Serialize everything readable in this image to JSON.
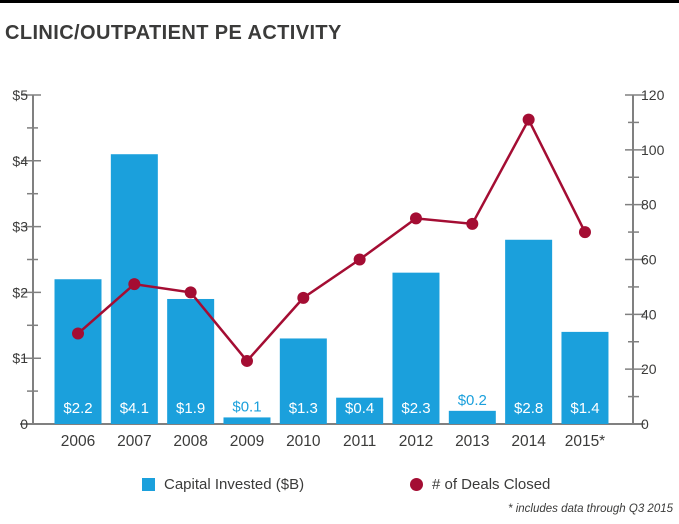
{
  "title": "CLINIC/OUTPATIENT PE ACTIVITY",
  "footnote": "* includes data through Q3 2015",
  "colors": {
    "bar": "#1BA0DC",
    "line": "#A40D33",
    "axis": "#808080",
    "text": "#3B3B3A",
    "bar_label_inside": "#FFFFFF",
    "top_rule": "#000000"
  },
  "legend": [
    {
      "label": "Capital Invested ($B)",
      "swatch": "square",
      "color": "#1BA0DC"
    },
    {
      "label": "# of Deals Closed",
      "swatch": "circle",
      "color": "#A40D33"
    }
  ],
  "chart_data": {
    "type": "bar+line combo",
    "categories": [
      "2006",
      "2007",
      "2008",
      "2009",
      "2010",
      "2011",
      "2012",
      "2013",
      "2014",
      "2015*"
    ],
    "series": [
      {
        "name": "Capital Invested ($B)",
        "type": "bar",
        "axis": "left",
        "values": [
          2.2,
          4.1,
          1.9,
          0.1,
          1.3,
          0.4,
          2.3,
          0.2,
          2.8,
          1.4
        ],
        "labels": [
          "$2.2",
          "$4.1",
          "$1.9",
          "$0.1",
          "$1.3",
          "$0.4",
          "$2.3",
          "$0.2",
          "$2.8",
          "$1.4"
        ]
      },
      {
        "name": "# of Deals Closed",
        "type": "line",
        "axis": "right",
        "values": [
          33,
          51,
          48,
          23,
          46,
          60,
          75,
          73,
          111,
          70
        ]
      }
    ],
    "left_axis": {
      "min": 0,
      "max": 5,
      "major_step": 1,
      "minor_step": 0.5,
      "labels": [
        "$5",
        "$4",
        "$3",
        "$2",
        "$1",
        "0"
      ]
    },
    "right_axis": {
      "min": 0,
      "max": 120,
      "major_step": 20,
      "minor_step": 10,
      "labels": [
        "120",
        "100",
        "80",
        "60",
        "40",
        "20",
        "0"
      ]
    },
    "grid": "off",
    "legend_position": "bottom"
  }
}
